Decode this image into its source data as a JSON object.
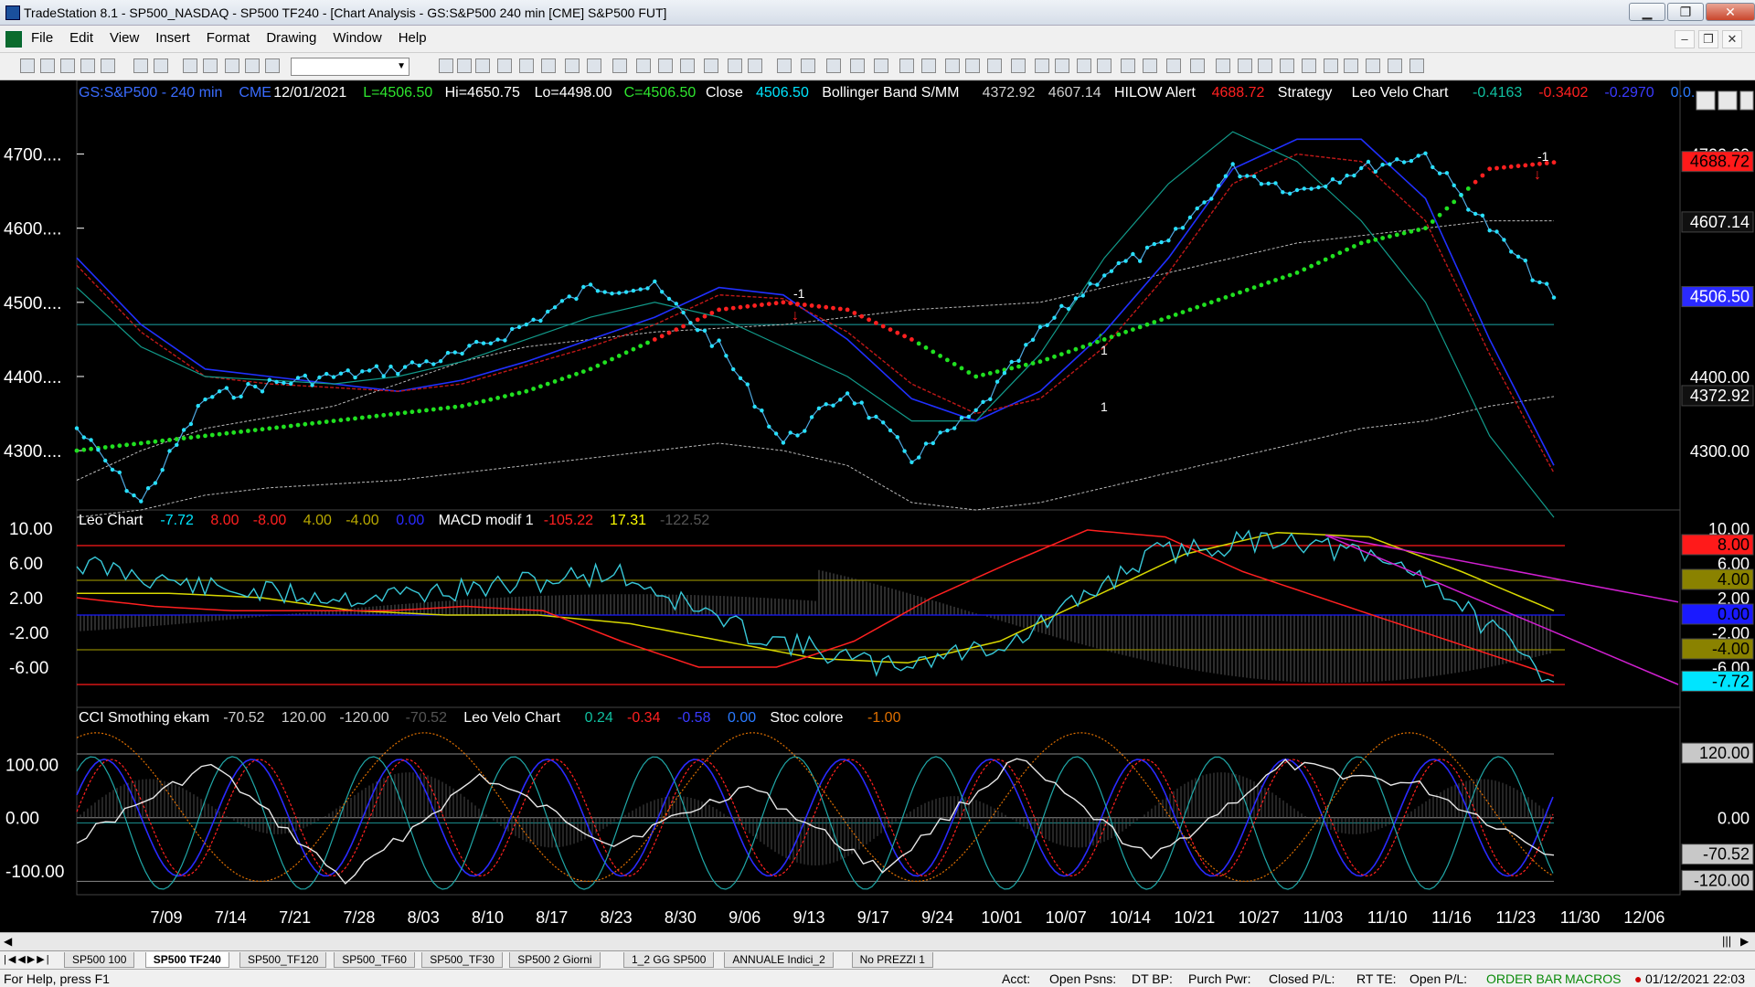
{
  "window": {
    "title": "TradeStation 8.1 - SP500_NASDAQ - SP500 TF240 - [Chart Analysis - GS:S&P500  240 min  [CME] S&P500 FUT]"
  },
  "menu": [
    "File",
    "Edit",
    "View",
    "Insert",
    "Format",
    "Drawing",
    "Window",
    "Help"
  ],
  "price_panel": {
    "header": [
      {
        "t": "GS:S&P500 - 240 min",
        "c": "#3a6cff"
      },
      {
        "t": "CME",
        "c": "#3a6cff"
      },
      {
        "t": "12/01/2021",
        "c": "#ffffff"
      },
      {
        "t": "L=4506.50",
        "c": "#2ee52e"
      },
      {
        "t": "Hi=4650.75",
        "c": "#ffffff"
      },
      {
        "t": "Lo=4498.00",
        "c": "#ffffff"
      },
      {
        "t": "C=4506.50",
        "c": "#2ee52e"
      },
      {
        "t": "Close",
        "c": "#ffffff"
      },
      {
        "t": "4506.50",
        "c": "#00e5ff"
      },
      {
        "t": "Bollinger Band S/MM",
        "c": "#ffffff"
      },
      {
        "t": "4372.92",
        "c": "#cfcfcf"
      },
      {
        "t": "4607.14",
        "c": "#cfcfcf"
      },
      {
        "t": "HILOW Alert",
        "c": "#ffffff"
      },
      {
        "t": "4688.72",
        "c": "#ff2020"
      },
      {
        "t": "Strategy",
        "c": "#ffffff"
      },
      {
        "t": "Leo Velo Chart",
        "c": "#ffffff"
      },
      {
        "t": "-0.4163",
        "c": "#10c0a0"
      },
      {
        "t": "-0.3402",
        "c": "#ff2020"
      },
      {
        "t": "-0.2970",
        "c": "#3a3aff"
      },
      {
        "t": "0.0...",
        "c": "#2a7aff"
      }
    ],
    "axis": [
      "4700....",
      "4600....",
      "4500....",
      "4400....",
      "4300...."
    ],
    "right_axis": [
      "4700.00",
      "4400.00",
      "4300.00"
    ],
    "tags": [
      {
        "t": "4688.72",
        "bg": "#ff1a1a",
        "fg": "#000000"
      },
      {
        "t": "4607.14",
        "bg": "#101010",
        "fg": "#ffffff"
      },
      {
        "t": "4506.50",
        "bg": "#2a2aff",
        "fg": "#ffffff"
      },
      {
        "t": "4372.92",
        "bg": "#101010",
        "fg": "#ffffff"
      }
    ],
    "markers": [
      "-1",
      "1",
      "1",
      "-1"
    ]
  },
  "leo_panel": {
    "header": [
      {
        "t": "Leo Chart",
        "c": "#ffffff"
      },
      {
        "t": "-7.72",
        "c": "#00e5ff"
      },
      {
        "t": "8.00",
        "c": "#ff2020"
      },
      {
        "t": "-8.00",
        "c": "#ff2020"
      },
      {
        "t": "4.00",
        "c": "#b8a800"
      },
      {
        "t": "-4.00",
        "c": "#b8a800"
      },
      {
        "t": "0.00",
        "c": "#2a2aff"
      },
      {
        "t": "MACD modif 1",
        "c": "#ffffff"
      },
      {
        "t": "-105.22",
        "c": "#ff2020"
      },
      {
        "t": "17.31",
        "c": "#ffff00"
      },
      {
        "t": "-122.52",
        "c": "#555555"
      }
    ],
    "axis": [
      "10.00",
      "6.00",
      "2.00",
      "-2.00",
      "-6.00"
    ],
    "right_axis": [
      "10.00",
      "6.00",
      "2.00",
      "-2.00",
      "-6.00"
    ],
    "tags": [
      {
        "t": "8.00",
        "bg": "#ff1a1a",
        "fg": "#000000"
      },
      {
        "t": "4.00",
        "bg": "#8a8200",
        "fg": "#000000"
      },
      {
        "t": "0.00",
        "bg": "#1a1aff",
        "fg": "#000000"
      },
      {
        "t": "-4.00",
        "bg": "#8a8200",
        "fg": "#000000"
      },
      {
        "t": "-7.72",
        "bg": "#00e5ff",
        "fg": "#000000"
      }
    ]
  },
  "cci_panel": {
    "header": [
      {
        "t": "CCI Smothing ekam",
        "c": "#ffffff"
      },
      {
        "t": "-70.52",
        "c": "#cfcfcf"
      },
      {
        "t": "120.00",
        "c": "#cfcfcf"
      },
      {
        "t": "-120.00",
        "c": "#cfcfcf"
      },
      {
        "t": "-70.52",
        "c": "#555555"
      },
      {
        "t": "Leo Velo Chart",
        "c": "#ffffff"
      },
      {
        "t": "0.24",
        "c": "#10c0a0"
      },
      {
        "t": "-0.34",
        "c": "#ff2020"
      },
      {
        "t": "-0.58",
        "c": "#3a3aff"
      },
      {
        "t": "0.00",
        "c": "#2a7aff"
      },
      {
        "t": "Stoc colore",
        "c": "#ffffff"
      },
      {
        "t": "-1.00",
        "c": "#e07000"
      }
    ],
    "axis": [
      "100.00",
      "0.00",
      "-100.00"
    ],
    "right_axis": [
      "0.00"
    ],
    "tags": [
      {
        "t": "120.00",
        "bg": "#c8c8c8",
        "fg": "#000000"
      },
      {
        "t": "-70.52",
        "bg": "#c8c8c8",
        "fg": "#000000"
      },
      {
        "t": "-120.00",
        "bg": "#c8c8c8",
        "fg": "#000000"
      }
    ]
  },
  "x_axis": [
    "7/09",
    "7/14",
    "7/21",
    "7/28",
    "8/03",
    "8/10",
    "8/17",
    "8/23",
    "8/30",
    "9/06",
    "9/13",
    "9/17",
    "9/24",
    "10/01",
    "10/07",
    "10/14",
    "10/21",
    "10/27",
    "11/03",
    "11/10",
    "11/16",
    "11/23",
    "11/30",
    "12/06"
  ],
  "tabs": [
    "SP500 100",
    "SP500 TF240",
    "SP500_TF120",
    "SP500_TF60",
    "SP500_TF30",
    "SP500 2 Giorni",
    "1_2 GG SP500",
    "ANNUALE Indici_2",
    "No PREZZI 1"
  ],
  "active_tab": "SP500 TF240",
  "status": {
    "help": "For Help, press F1",
    "fields": [
      "Acct:",
      "Open Psns:",
      "DT BP:",
      "Purch Pwr:",
      "Closed P/L:",
      "RT TE:",
      "Open P/L:"
    ],
    "order_bar": "ORDER BAR",
    "macros": "MACROS",
    "datetime": "01/12/2021 22:03"
  },
  "chart_data": [
    {
      "type": "line",
      "title": "GS:S&P500 - 240 min",
      "xlabel": "",
      "ylabel": "",
      "x": [
        "7/09",
        "7/14",
        "7/21",
        "7/28",
        "8/03",
        "8/10",
        "8/17",
        "8/23",
        "8/30",
        "9/06",
        "9/13",
        "9/17",
        "9/24",
        "10/01",
        "10/07",
        "10/14",
        "10/21",
        "10/27",
        "11/03",
        "11/10",
        "11/16",
        "11/23",
        "11/30",
        "12/01"
      ],
      "ylim": [
        4220,
        4750
      ],
      "series": [
        {
          "name": "Close",
          "values": [
            4330,
            4230,
            4370,
            4390,
            4400,
            4410,
            4430,
            4470,
            4520,
            4520,
            4440,
            4310,
            4380,
            4290,
            4350,
            4460,
            4540,
            4580,
            4680,
            4650,
            4680,
            4700,
            4600,
            4506.5
          ]
        },
        {
          "name": "Bollinger Band S/MM",
          "values": [
            4240,
            4290,
            4330,
            4345,
            4370,
            4385,
            4405,
            4420,
            4440,
            4450,
            4460,
            4455,
            4450,
            4380,
            4345,
            4350,
            4400,
            4480,
            4560,
            4610,
            4650,
            4660,
            4640,
            4607.14
          ]
        },
        {
          "name": "HILOW Alert",
          "values": [
            4300,
            4310,
            4320,
            4330,
            4340,
            4350,
            4360,
            4380,
            4410,
            4450,
            4490,
            4500,
            4490,
            4450,
            4400,
            4420,
            4450,
            4480,
            4510,
            4540,
            4580,
            4600,
            4680,
            4688.72
          ]
        }
      ]
    },
    {
      "type": "line",
      "title": "Leo Chart",
      "x": [
        "7/09",
        "7/21",
        "8/03",
        "8/17",
        "8/30",
        "9/13",
        "9/24",
        "10/07",
        "10/21",
        "11/03",
        "11/16",
        "11/30"
      ],
      "ylim": [
        -10,
        10
      ],
      "series": [
        {
          "name": "Leo Chart",
          "values": [
            6,
            3,
            2,
            3,
            5,
            -2,
            -6,
            -3,
            7,
            9,
            5,
            -7.72
          ]
        },
        {
          "name": "MACD modif 1",
          "values": [
            2.5,
            1,
            0.5,
            0.5,
            1,
            -1,
            -6,
            -5,
            5,
            9,
            4,
            -7
          ]
        }
      ]
    },
    {
      "type": "line",
      "title": "CCI Smothing ekam",
      "x": [
        "7/09",
        "7/21",
        "8/03",
        "8/17",
        "8/30",
        "9/13",
        "9/24",
        "10/07",
        "10/21",
        "11/03",
        "11/16",
        "11/30"
      ],
      "ylim": [
        -140,
        170
      ],
      "series": [
        {
          "name": "CCI Smothing ekam",
          "values": [
            -40,
            100,
            -120,
            80,
            -50,
            60,
            -100,
            110,
            -80,
            100,
            60,
            -70.52
          ]
        }
      ]
    }
  ]
}
